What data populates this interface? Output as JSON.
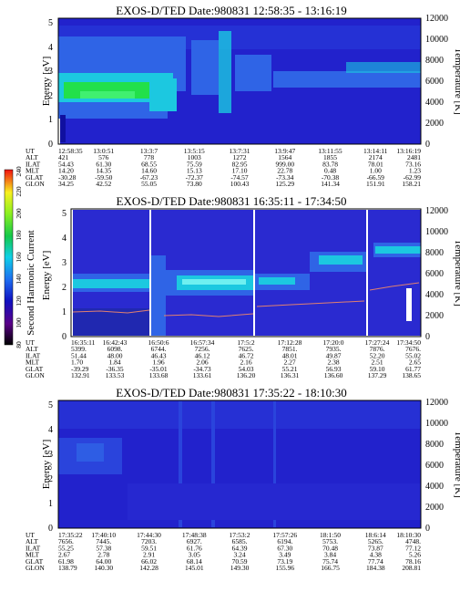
{
  "chart_data": [
    {
      "type": "heatmap",
      "title": "EXOS-D/TED   Date:980831   12:58:35 - 13:16:19",
      "ylabel": "Energy [eV]",
      "y2label": "Temperature [K]",
      "yticks": [
        "0",
        "1",
        "2",
        "3",
        "4",
        "5"
      ],
      "y2ticks": [
        "0",
        "2000",
        "4000",
        "6000",
        "8000",
        "10000",
        "12000"
      ],
      "ylim": [
        0,
        5.2
      ],
      "y2lim": [
        0,
        12000
      ],
      "table": {
        "labels": [
          "UT",
          "ALT",
          "ILAT",
          "MLT",
          "GLAT",
          "GLON"
        ],
        "columns": [
          [
            "12:58:35",
            "421",
            "54.43",
            "14.20",
            "-30.28",
            "34.25"
          ],
          [
            "13:0:51",
            "576",
            "61.30",
            "14.35",
            "-59.50",
            "42.52"
          ],
          [
            "13:3:7",
            "778",
            "68.55",
            "14.60",
            "-67.23",
            "55.05"
          ],
          [
            "13:5:15",
            "1003",
            "75.59",
            "15.13",
            "-72.37",
            "73.80"
          ],
          [
            "13:7:31",
            "1272",
            "82.95",
            "17.10",
            "-74.57",
            "100.43"
          ],
          [
            "13:9:47",
            "1564",
            "999.00",
            "22.78",
            "-73.34",
            "125.29"
          ],
          [
            "13:11:55",
            "1855",
            "83.78",
            "0.48",
            "-70.38",
            "141.34"
          ],
          [
            "13:14:11",
            "2174",
            "78.01",
            "1.00",
            "-66.59",
            "151.91"
          ],
          [
            "13:16:19",
            "2481",
            "73.16",
            "1.23",
            "-62.99",
            "158.21"
          ]
        ]
      }
    },
    {
      "type": "heatmap",
      "title": "EXOS-D/TED   Date:980831   16:35:11 - 17:34:50",
      "ylabel": "Energy [eV]",
      "y2label": "Temperature [K]",
      "yticks": [
        "0",
        "1",
        "2",
        "3",
        "4",
        "5"
      ],
      "y2ticks": [
        "0",
        "2000",
        "4000",
        "6000",
        "8000",
        "10000",
        "12000"
      ],
      "ylim": [
        0,
        5.2
      ],
      "y2lim": [
        0,
        12000
      ],
      "colorbar": {
        "label": "Second Harmonic Current",
        "ticks": [
          "80",
          "100",
          "120",
          "140",
          "160",
          "180",
          "200",
          "220",
          "240"
        ]
      },
      "table": {
        "labels": [
          "UT",
          "ALT",
          "ILAT",
          "MLT",
          "GLAT",
          "GLON"
        ],
        "columns": [
          [
            "16:35:11",
            "5399.",
            "51.44",
            "1.70",
            "-39.29",
            "132.91"
          ],
          [
            "16:42:43",
            "6098.",
            "48.00",
            "1.84",
            "-36.35",
            "133.53"
          ],
          [
            "16:50:6",
            "6744.",
            "46.43",
            "1.96",
            "-35.01",
            "133.68"
          ],
          [
            "16:57:34",
            "7256.",
            "46.12",
            "2.06",
            "-34.73",
            "133.61"
          ],
          [
            "17:5:2",
            "7625.",
            "46.72",
            "2.16",
            "54.03",
            "136.20"
          ],
          [
            "17:12:28",
            "7851.",
            "48.01",
            "2.27",
            "55.21",
            "136.31"
          ],
          [
            "17:20:0",
            "7935.",
            "49.87",
            "2.38",
            "56.93",
            "136.60"
          ],
          [
            "17:27:24",
            "7876.",
            "52.20",
            "2.51",
            "59.10",
            "137.29"
          ],
          [
            "17:34:50",
            "7676.",
            "55.02",
            "2.65",
            "61.77",
            "138.65"
          ]
        ]
      }
    },
    {
      "type": "heatmap",
      "title": "EXOS-D/TED   Date:980831   17:35:22 - 18:10:30",
      "ylabel": "Energy [eV]",
      "y2label": "Temperature [K]",
      "yticks": [
        "0",
        "1",
        "2",
        "3",
        "4",
        "5"
      ],
      "y2ticks": [
        "0",
        "2000",
        "4000",
        "6000",
        "8000",
        "10000",
        "12000"
      ],
      "ylim": [
        0,
        5.2
      ],
      "y2lim": [
        0,
        12000
      ],
      "table": {
        "labels": [
          "UT",
          "ALT",
          "ILAT",
          "MLT",
          "GLAT",
          "GLON"
        ],
        "columns": [
          [
            "17:35:22",
            "7656.",
            "55.25",
            "2.67",
            "61.98",
            "138.79"
          ],
          [
            "17:40:10",
            "7445.",
            "57.38",
            "2.78",
            "64.00",
            "140.30"
          ],
          [
            "17:44:30",
            "7203.",
            "59.51",
            "2.91",
            "66.02",
            "142.28"
          ],
          [
            "17:48:38",
            "6927.",
            "61.76",
            "3.05",
            "68.14",
            "145.01"
          ],
          [
            "17:53:2",
            "6585.",
            "64.39",
            "3.24",
            "70.59",
            "149.30"
          ],
          [
            "17:57:26",
            "6194.",
            "67.30",
            "3.49",
            "73.19",
            "155.96"
          ],
          [
            "18:1:50",
            "5753.",
            "70.48",
            "3.84",
            "75.74",
            "166.75"
          ],
          [
            "18:6:14",
            "5265.",
            "73.87",
            "4.38",
            "77.74",
            "184.38"
          ],
          [
            "18:10:30",
            "4748.",
            "77.12",
            "5.26",
            "78.16",
            "208.81"
          ]
        ]
      }
    }
  ],
  "colors": {
    "background": "#2222cc",
    "mid": "#2f64e6",
    "high": "#1cc8e0",
    "peak": "#22e04a"
  }
}
